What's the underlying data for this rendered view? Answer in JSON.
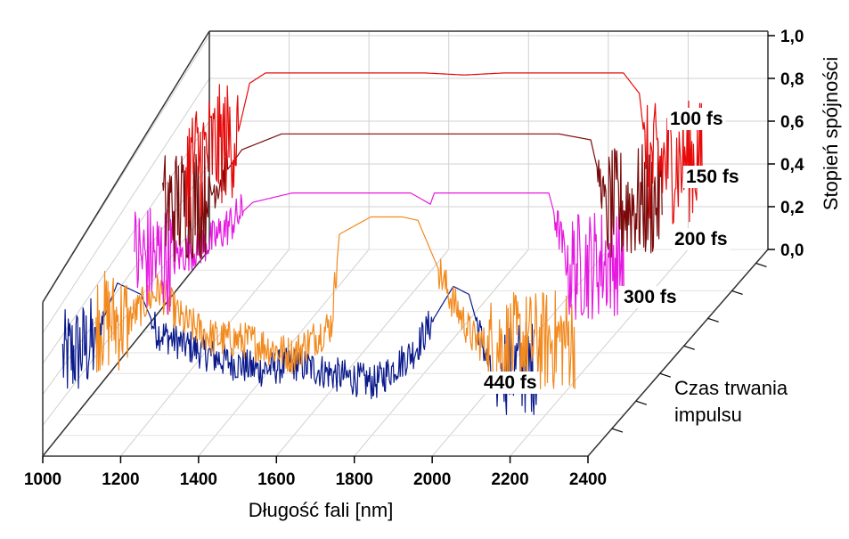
{
  "chart_data": {
    "type": "line",
    "subtype": "3d-waterfall",
    "xlabel": "Długość fali [nm]",
    "zlabel": "Stopień spójności",
    "ylabel": "Czas trwania impulsu",
    "xlabel_lines": [
      "Czas trwania",
      "impulsu"
    ],
    "xlim": [
      1000,
      2400
    ],
    "zlim": [
      0.0,
      1.0
    ],
    "x_ticks": [
      "1000",
      "1200",
      "1400",
      "1600",
      "1800",
      "2000",
      "2200",
      "2400"
    ],
    "z_ticks": [
      "0,0",
      "0,2",
      "0,4",
      "0,6",
      "0,8",
      "1,0"
    ],
    "grid": true,
    "series": [
      {
        "name": "440 fs",
        "color": "#0a1a8c",
        "noise_start": 1000,
        "noise_end": 1080,
        "noise_start2": 2130,
        "noise_end2": 2220,
        "x": [
          1000,
          1080,
          1140,
          1200,
          1240,
          1300,
          1400,
          1500,
          1600,
          1700,
          1800,
          1900,
          1950,
          2000,
          2040,
          2080,
          2110,
          2130,
          2220
        ],
        "y": [
          0.45,
          0.55,
          0.92,
          0.85,
          0.62,
          0.55,
          0.45,
          0.38,
          0.42,
          0.35,
          0.3,
          0.5,
          0.7,
          0.9,
          0.85,
          0.5,
          0.22,
          0.4,
          0.4
        ]
      },
      {
        "name": "300 fs",
        "color": "#f28a1e",
        "noise_start": 1000,
        "noise_end": 1080,
        "noise_start2": 2000,
        "noise_end2": 2220,
        "x": [
          1000,
          1080,
          1160,
          1220,
          1300,
          1400,
          1500,
          1600,
          1620,
          1700,
          1780,
          1820,
          1900,
          1960,
          2000,
          2220
        ],
        "y": [
          0.4,
          0.4,
          0.58,
          0.4,
          0.3,
          0.28,
          0.2,
          0.38,
          0.9,
          1.0,
          1.0,
          0.98,
          0.55,
          0.3,
          0.25,
          0.3
        ]
      },
      {
        "name": "200 fs",
        "color": "#e619e0",
        "noise_start": 1000,
        "noise_end": 1100,
        "noise_start2": 2100,
        "noise_end2": 2240,
        "x": [
          1000,
          1100,
          1200,
          1300,
          1400,
          1500,
          1600,
          1700,
          1750,
          1760,
          1800,
          1900,
          2050,
          2100,
          2240
        ],
        "y": [
          0.45,
          0.45,
          0.55,
          0.75,
          0.8,
          0.8,
          0.8,
          0.8,
          0.74,
          0.8,
          0.8,
          0.8,
          0.8,
          0.4,
          0.45
        ]
      },
      {
        "name": "150 fs",
        "color": "#7a0a0a",
        "noise_start": 1000,
        "noise_end": 1110,
        "noise_start2": 2120,
        "noise_end2": 2260,
        "x": [
          1000,
          1110,
          1200,
          1300,
          1400,
          1500,
          1600,
          1700,
          1800,
          1900,
          2000,
          2080,
          2120,
          2260
        ],
        "y": [
          0.5,
          0.55,
          0.8,
          0.88,
          0.88,
          0.88,
          0.88,
          0.88,
          0.88,
          0.88,
          0.88,
          0.85,
          0.5,
          0.55
        ]
      },
      {
        "name": "100 fs",
        "color": "#e60a0a",
        "noise_start": 1000,
        "noise_end": 1130,
        "noise_start2": 2160,
        "noise_end2": 2300,
        "x": [
          1000,
          1130,
          1160,
          1200,
          1300,
          1400,
          1500,
          1600,
          1700,
          1800,
          1900,
          2000,
          2100,
          2140,
          2160,
          2300
        ],
        "y": [
          0.55,
          0.7,
          0.95,
          1.0,
          1.0,
          1.0,
          1.0,
          1.0,
          0.99,
          1.0,
          1.0,
          1.0,
          1.0,
          0.9,
          0.55,
          0.58
        ]
      }
    ]
  }
}
